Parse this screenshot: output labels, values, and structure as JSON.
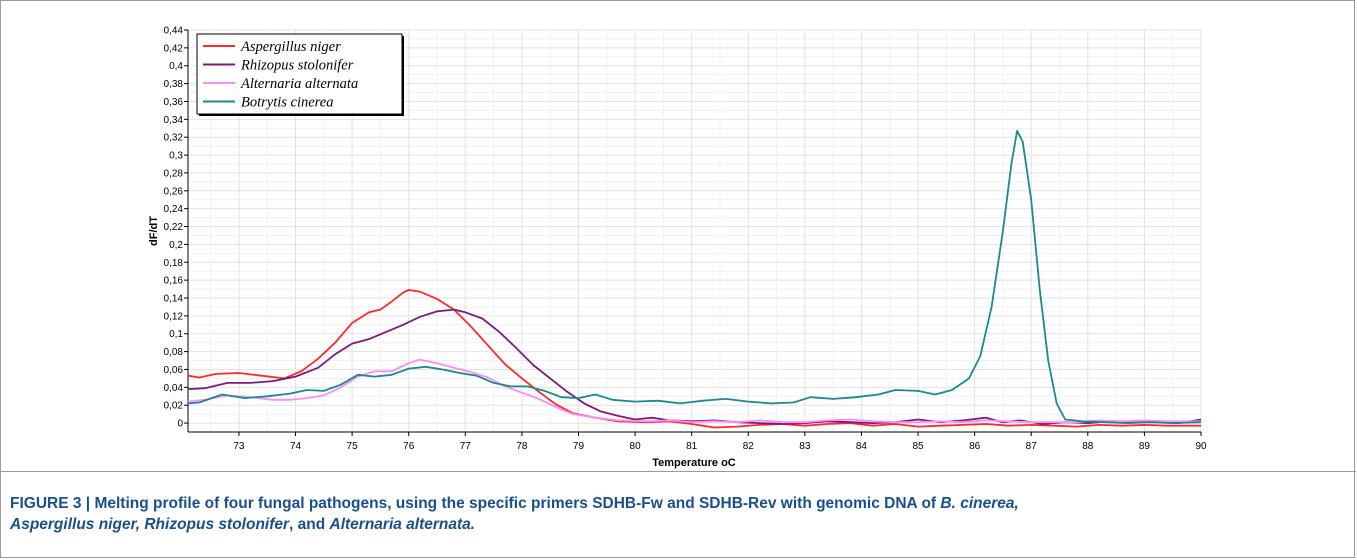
{
  "chart_data": {
    "type": "line",
    "xlabel": "Temperature oC",
    "ylabel": "dF/dT",
    "xlim": [
      72.1,
      90.0
    ],
    "ylim": [
      -0.01,
      0.44
    ],
    "x_ticks": [
      "73",
      "74",
      "75",
      "76",
      "77",
      "78",
      "79",
      "80",
      "81",
      "82",
      "83",
      "84",
      "85",
      "86",
      "87",
      "88",
      "89",
      "90"
    ],
    "y_ticks": [
      "0",
      "0,02",
      "0,04",
      "0,06",
      "0,08",
      "0,1",
      "0,12",
      "0,14",
      "0,16",
      "0,18",
      "0,2",
      "0,22",
      "0,24",
      "0,26",
      "0,28",
      "0,3",
      "0,32",
      "0,34",
      "0,36",
      "0,38",
      "0,4",
      "0,42",
      "0,44"
    ],
    "grid": true,
    "legend_position": "top-left",
    "series": [
      {
        "name": "Aspergillus niger",
        "color": "#ff2a2a",
        "points": [
          [
            72.1,
            0.053
          ],
          [
            72.3,
            0.051
          ],
          [
            72.6,
            0.055
          ],
          [
            73.0,
            0.056
          ],
          [
            73.4,
            0.053
          ],
          [
            73.8,
            0.05
          ],
          [
            74.1,
            0.058
          ],
          [
            74.4,
            0.072
          ],
          [
            74.7,
            0.09
          ],
          [
            75.0,
            0.112
          ],
          [
            75.3,
            0.124
          ],
          [
            75.5,
            0.127
          ],
          [
            75.7,
            0.136
          ],
          [
            75.9,
            0.146
          ],
          [
            76.0,
            0.149
          ],
          [
            76.2,
            0.147
          ],
          [
            76.5,
            0.139
          ],
          [
            76.8,
            0.127
          ],
          [
            77.1,
            0.108
          ],
          [
            77.4,
            0.087
          ],
          [
            77.7,
            0.066
          ],
          [
            78.0,
            0.05
          ],
          [
            78.3,
            0.035
          ],
          [
            78.6,
            0.021
          ],
          [
            78.9,
            0.011
          ],
          [
            79.3,
            0.006
          ],
          [
            79.7,
            0.002
          ],
          [
            80.2,
            0.001
          ],
          [
            80.6,
            0.002
          ],
          [
            81.0,
            -0.001
          ],
          [
            81.4,
            -0.005
          ],
          [
            81.8,
            -0.004
          ],
          [
            82.2,
            -0.002
          ],
          [
            82.6,
            -0.001
          ],
          [
            83.0,
            -0.003
          ],
          [
            83.4,
            -0.001
          ],
          [
            83.8,
            0.0
          ],
          [
            84.2,
            -0.003
          ],
          [
            84.6,
            -0.001
          ],
          [
            85.0,
            -0.004
          ],
          [
            85.4,
            -0.003
          ],
          [
            85.8,
            -0.002
          ],
          [
            86.2,
            -0.001
          ],
          [
            86.6,
            -0.003
          ],
          [
            87.0,
            -0.002
          ],
          [
            87.4,
            -0.003
          ],
          [
            87.8,
            -0.004
          ],
          [
            88.2,
            -0.002
          ],
          [
            88.6,
            -0.003
          ],
          [
            89.0,
            -0.002
          ],
          [
            89.4,
            -0.003
          ],
          [
            90.0,
            -0.003
          ]
        ]
      },
      {
        "name": "Rhizopus stolonifer",
        "color": "#7a1a7a",
        "points": [
          [
            72.1,
            0.038
          ],
          [
            72.4,
            0.039
          ],
          [
            72.8,
            0.045
          ],
          [
            73.2,
            0.045
          ],
          [
            73.6,
            0.047
          ],
          [
            74.0,
            0.052
          ],
          [
            74.4,
            0.062
          ],
          [
            74.7,
            0.077
          ],
          [
            75.0,
            0.089
          ],
          [
            75.3,
            0.094
          ],
          [
            75.6,
            0.102
          ],
          [
            75.9,
            0.11
          ],
          [
            76.2,
            0.119
          ],
          [
            76.5,
            0.125
          ],
          [
            76.8,
            0.127
          ],
          [
            77.0,
            0.124
          ],
          [
            77.3,
            0.117
          ],
          [
            77.6,
            0.102
          ],
          [
            77.9,
            0.084
          ],
          [
            78.2,
            0.065
          ],
          [
            78.5,
            0.05
          ],
          [
            78.8,
            0.035
          ],
          [
            79.1,
            0.022
          ],
          [
            79.4,
            0.013
          ],
          [
            79.7,
            0.008
          ],
          [
            80.0,
            0.004
          ],
          [
            80.3,
            0.006
          ],
          [
            80.6,
            0.003
          ],
          [
            81.0,
            0.002
          ],
          [
            81.4,
            0.003
          ],
          [
            81.8,
            0.001
          ],
          [
            82.2,
            0.0
          ],
          [
            82.6,
            -0.001
          ],
          [
            83.0,
            0.0
          ],
          [
            83.4,
            0.002
          ],
          [
            83.8,
            0.001
          ],
          [
            84.2,
            0.0
          ],
          [
            84.6,
            0.001
          ],
          [
            85.0,
            0.004
          ],
          [
            85.4,
            0.001
          ],
          [
            85.8,
            0.003
          ],
          [
            86.2,
            0.006
          ],
          [
            86.5,
            0.001
          ],
          [
            86.8,
            0.003
          ],
          [
            87.2,
            -0.001
          ],
          [
            87.6,
            0.001
          ],
          [
            88.0,
            0.0
          ],
          [
            88.4,
            0.002
          ],
          [
            88.8,
            0.001
          ],
          [
            89.2,
            0.002
          ],
          [
            89.6,
            0.0
          ],
          [
            90.0,
            0.004
          ]
        ]
      },
      {
        "name": "Alternaria alternata",
        "color": "#ff8cff",
        "points": [
          [
            72.1,
            0.024
          ],
          [
            72.4,
            0.026
          ],
          [
            72.8,
            0.031
          ],
          [
            73.2,
            0.029
          ],
          [
            73.6,
            0.026
          ],
          [
            73.9,
            0.026
          ],
          [
            74.2,
            0.028
          ],
          [
            74.5,
            0.031
          ],
          [
            74.8,
            0.04
          ],
          [
            75.1,
            0.052
          ],
          [
            75.4,
            0.058
          ],
          [
            75.7,
            0.058
          ],
          [
            76.0,
            0.067
          ],
          [
            76.2,
            0.071
          ],
          [
            76.5,
            0.067
          ],
          [
            76.8,
            0.062
          ],
          [
            77.1,
            0.057
          ],
          [
            77.4,
            0.051
          ],
          [
            77.7,
            0.041
          ],
          [
            78.0,
            0.034
          ],
          [
            78.3,
            0.027
          ],
          [
            78.6,
            0.018
          ],
          [
            78.9,
            0.01
          ],
          [
            79.3,
            0.006
          ],
          [
            79.7,
            0.003
          ],
          [
            80.2,
            0.002
          ],
          [
            80.6,
            0.003
          ],
          [
            81.0,
            0.001
          ],
          [
            81.4,
            0.002
          ],
          [
            81.8,
            0.001
          ],
          [
            82.2,
            0.003
          ],
          [
            82.6,
            0.001
          ],
          [
            83.0,
            0.001
          ],
          [
            83.4,
            0.003
          ],
          [
            83.8,
            0.004
          ],
          [
            84.2,
            0.002
          ],
          [
            84.6,
            0.001
          ],
          [
            85.0,
            0.001
          ],
          [
            85.4,
            0.002
          ],
          [
            85.8,
            0.001
          ],
          [
            86.2,
            0.003
          ],
          [
            86.6,
            0.002
          ],
          [
            87.0,
            0.001
          ],
          [
            87.4,
            0.001
          ],
          [
            87.8,
            0.001
          ],
          [
            88.2,
            0.003
          ],
          [
            88.6,
            0.002
          ],
          [
            89.0,
            0.003
          ],
          [
            89.4,
            0.002
          ],
          [
            90.0,
            0.002
          ]
        ]
      },
      {
        "name": "Botrytis cinerea",
        "color": "#1a8a8a",
        "points": [
          [
            72.1,
            0.022
          ],
          [
            72.3,
            0.023
          ],
          [
            72.7,
            0.032
          ],
          [
            73.1,
            0.028
          ],
          [
            73.5,
            0.03
          ],
          [
            73.9,
            0.033
          ],
          [
            74.2,
            0.037
          ],
          [
            74.5,
            0.036
          ],
          [
            74.8,
            0.043
          ],
          [
            75.1,
            0.054
          ],
          [
            75.4,
            0.052
          ],
          [
            75.7,
            0.054
          ],
          [
            76.0,
            0.061
          ],
          [
            76.3,
            0.063
          ],
          [
            76.6,
            0.06
          ],
          [
            76.9,
            0.056
          ],
          [
            77.2,
            0.053
          ],
          [
            77.5,
            0.045
          ],
          [
            77.8,
            0.041
          ],
          [
            78.1,
            0.041
          ],
          [
            78.4,
            0.036
          ],
          [
            78.7,
            0.029
          ],
          [
            79.0,
            0.028
          ],
          [
            79.3,
            0.032
          ],
          [
            79.6,
            0.026
          ],
          [
            80.0,
            0.024
          ],
          [
            80.4,
            0.025
          ],
          [
            80.8,
            0.022
          ],
          [
            81.2,
            0.025
          ],
          [
            81.6,
            0.027
          ],
          [
            82.0,
            0.024
          ],
          [
            82.4,
            0.022
          ],
          [
            82.8,
            0.023
          ],
          [
            83.1,
            0.029
          ],
          [
            83.5,
            0.027
          ],
          [
            83.9,
            0.029
          ],
          [
            84.3,
            0.032
          ],
          [
            84.6,
            0.037
          ],
          [
            85.0,
            0.036
          ],
          [
            85.3,
            0.032
          ],
          [
            85.6,
            0.037
          ],
          [
            85.9,
            0.05
          ],
          [
            86.1,
            0.075
          ],
          [
            86.3,
            0.13
          ],
          [
            86.5,
            0.215
          ],
          [
            86.65,
            0.29
          ],
          [
            86.75,
            0.327
          ],
          [
            86.85,
            0.315
          ],
          [
            87.0,
            0.25
          ],
          [
            87.15,
            0.15
          ],
          [
            87.3,
            0.07
          ],
          [
            87.45,
            0.022
          ],
          [
            87.6,
            0.004
          ],
          [
            87.9,
            0.002
          ],
          [
            88.3,
            0.001
          ],
          [
            88.7,
            0.0
          ],
          [
            89.1,
            0.001
          ],
          [
            89.5,
            0.0
          ],
          [
            90.0,
            0.001
          ]
        ]
      }
    ]
  },
  "caption": {
    "label": "FIGURE 3 | ",
    "text_1": "Melting profile of four fungal pathogens, using the specific primers SDHB-Fw and SDHB-Rev with genomic DNA of ",
    "species_1": "B. cinerea,",
    "species_2": "Aspergillus niger, Rhizopus stolonifer",
    "text_2": ", and ",
    "species_3": "Alternaria alternata."
  }
}
